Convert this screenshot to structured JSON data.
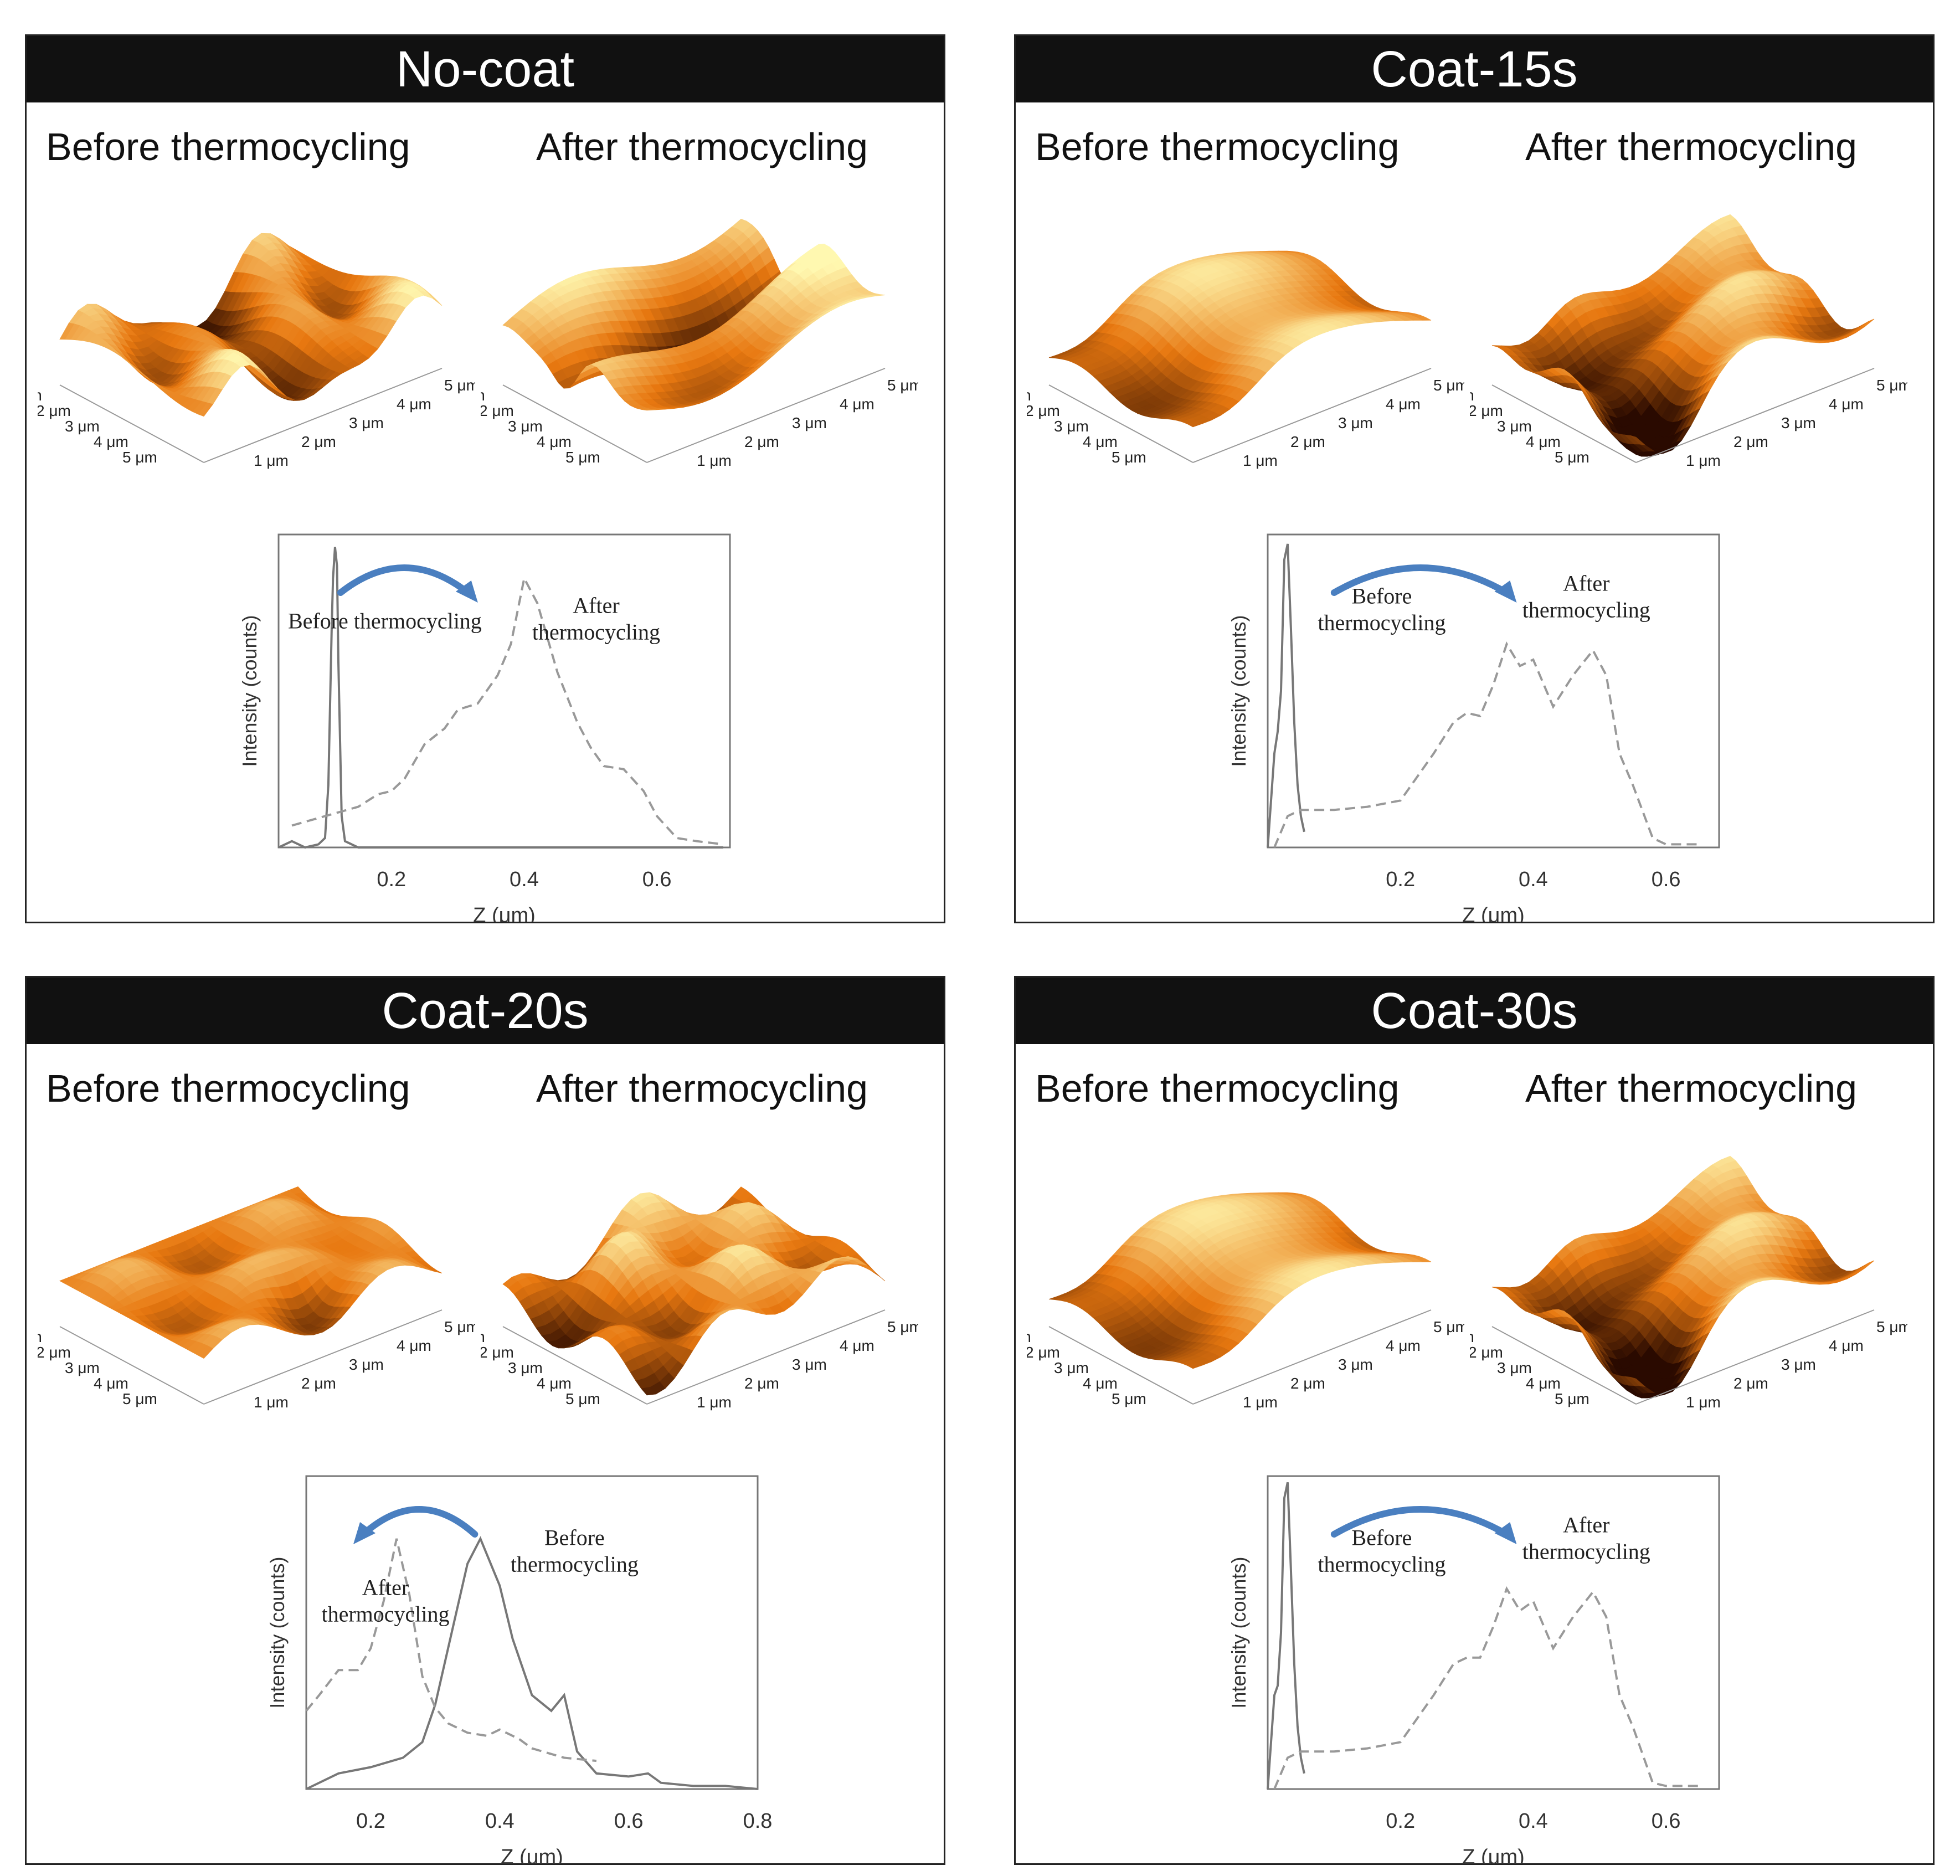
{
  "colors": {
    "header_bg": "#111111",
    "header_text": "#ffffff",
    "arrow": "#4a7fc0",
    "before_line": "#777777",
    "after_line": "#999999",
    "surface_dark": "#2a0a00",
    "surface_mid": "#e87810",
    "surface_light": "#fff8b0"
  },
  "panels": [
    {
      "title": "No-coat",
      "before_label": "Before thermocycling",
      "after_label": "After thermocycling",
      "surface_axis_labels": [
        "1 μm",
        "2 μm",
        "3 μm",
        "4 μm",
        "5 μm"
      ],
      "icon": "afm-surface-3d"
    },
    {
      "title": "Coat-15s",
      "before_label": "Before thermocycling",
      "after_label": "After thermocycling",
      "surface_axis_labels": [
        "1 μm",
        "2 μm",
        "3 μm",
        "4 μm",
        "5 μm"
      ],
      "icon": "afm-surface-3d"
    },
    {
      "title": "Coat-20s",
      "before_label": "Before thermocycling",
      "after_label": "After thermocycling",
      "surface_axis_labels": [
        "1 μm",
        "2 μm",
        "3 μm",
        "4 μm",
        "5 μm"
      ],
      "icon": "afm-surface-3d"
    },
    {
      "title": "Coat-30s",
      "before_label": "Before thermocycling",
      "after_label": "After thermocycling",
      "surface_axis_labels": [
        "1 μm",
        "2 μm",
        "3 μm",
        "4 μm",
        "5 μm"
      ],
      "icon": "afm-surface-3d"
    }
  ],
  "chart_data": [
    {
      "type": "line",
      "title": "No-coat",
      "xlabel": "Z (μm)",
      "ylabel": "Intensity (counts)",
      "xlim": [
        0.03,
        0.71
      ],
      "ylim": [
        0,
        1.0
      ],
      "xticks": [
        0.2,
        0.4,
        0.6
      ],
      "tick_labels": [
        "0.2",
        "0.4",
        "0.6"
      ],
      "annotation_before": [
        "Before thermocycling"
      ],
      "annotation_after": [
        "After",
        "thermocycling"
      ],
      "arrow_direction": "before-to-after",
      "series": [
        {
          "name": "Before thermocycling",
          "style": "solid",
          "x": [
            0.03,
            0.05,
            0.07,
            0.09,
            0.1,
            0.105,
            0.11,
            0.112,
            0.115,
            0.118,
            0.12,
            0.125,
            0.13,
            0.15,
            0.2,
            0.3,
            0.4,
            0.5,
            0.6,
            0.7
          ],
          "y": [
            0.0,
            0.02,
            0.0,
            0.01,
            0.03,
            0.2,
            0.7,
            0.86,
            0.96,
            0.9,
            0.6,
            0.1,
            0.02,
            0.0,
            0.0,
            0.0,
            0.0,
            0.0,
            0.0,
            0.0
          ]
        },
        {
          "name": "After thermocycling",
          "style": "dashed",
          "x": [
            0.05,
            0.1,
            0.15,
            0.18,
            0.2,
            0.22,
            0.25,
            0.28,
            0.3,
            0.33,
            0.36,
            0.38,
            0.4,
            0.42,
            0.45,
            0.48,
            0.5,
            0.52,
            0.55,
            0.58,
            0.6,
            0.63,
            0.66,
            0.7
          ],
          "y": [
            0.07,
            0.1,
            0.13,
            0.17,
            0.18,
            0.22,
            0.33,
            0.38,
            0.44,
            0.46,
            0.55,
            0.65,
            0.86,
            0.78,
            0.56,
            0.4,
            0.32,
            0.26,
            0.25,
            0.18,
            0.1,
            0.03,
            0.02,
            0.01
          ]
        }
      ]
    },
    {
      "type": "line",
      "title": "Coat-15s",
      "xlabel": "Z (μm)",
      "ylabel": "Intensity (counts)",
      "xlim": [
        0.0,
        0.68
      ],
      "ylim": [
        0,
        1.0
      ],
      "xticks": [
        0.2,
        0.4,
        0.6
      ],
      "tick_labels": [
        "0.2",
        "0.4",
        "0.6"
      ],
      "annotation_before": [
        "Before",
        "thermocycling"
      ],
      "annotation_after": [
        "After",
        "thermocycling"
      ],
      "arrow_direction": "before-to-after",
      "series": [
        {
          "name": "Before thermocycling",
          "style": "solid",
          "x": [
            0.0,
            0.01,
            0.015,
            0.02,
            0.025,
            0.03,
            0.035,
            0.04,
            0.045,
            0.05,
            0.055
          ],
          "y": [
            0.0,
            0.3,
            0.37,
            0.5,
            0.92,
            0.97,
            0.7,
            0.4,
            0.2,
            0.1,
            0.05
          ]
        },
        {
          "name": "After thermocycling",
          "style": "dashed",
          "x": [
            0.01,
            0.03,
            0.05,
            0.1,
            0.15,
            0.2,
            0.25,
            0.28,
            0.3,
            0.32,
            0.34,
            0.36,
            0.38,
            0.4,
            0.43,
            0.46,
            0.49,
            0.51,
            0.53,
            0.55,
            0.58,
            0.6,
            0.65
          ],
          "y": [
            0.0,
            0.1,
            0.12,
            0.12,
            0.13,
            0.15,
            0.3,
            0.4,
            0.43,
            0.42,
            0.52,
            0.65,
            0.58,
            0.6,
            0.45,
            0.55,
            0.63,
            0.55,
            0.3,
            0.2,
            0.03,
            0.01,
            0.01
          ]
        }
      ]
    },
    {
      "type": "line",
      "title": "Coat-20s",
      "xlabel": "Z (μm)",
      "ylabel": "Intensity (counts)",
      "xlim": [
        0.1,
        0.8
      ],
      "ylim": [
        0,
        1.0
      ],
      "xticks": [
        0.2,
        0.4,
        0.6,
        0.8
      ],
      "tick_labels": [
        "0.2",
        "0.4",
        "0.6",
        "0.8"
      ],
      "annotation_before": [
        "Before",
        "thermocycling"
      ],
      "annotation_after": [
        "After",
        "thermocycling"
      ],
      "arrow_direction": "before-to-after",
      "series": [
        {
          "name": "Before thermocycling",
          "style": "solid",
          "x": [
            0.1,
            0.15,
            0.2,
            0.25,
            0.28,
            0.3,
            0.32,
            0.35,
            0.37,
            0.4,
            0.42,
            0.45,
            0.48,
            0.5,
            0.52,
            0.55,
            0.6,
            0.63,
            0.65,
            0.7,
            0.75,
            0.8
          ],
          "y": [
            0.0,
            0.05,
            0.07,
            0.1,
            0.15,
            0.27,
            0.45,
            0.72,
            0.8,
            0.65,
            0.48,
            0.3,
            0.25,
            0.3,
            0.12,
            0.05,
            0.04,
            0.05,
            0.02,
            0.01,
            0.01,
            0.0
          ]
        },
        {
          "name": "After thermocycling",
          "style": "dashed",
          "x": [
            0.1,
            0.12,
            0.15,
            0.18,
            0.2,
            0.22,
            0.24,
            0.26,
            0.28,
            0.3,
            0.32,
            0.35,
            0.38,
            0.4,
            0.43,
            0.45,
            0.5,
            0.55
          ],
          "y": [
            0.25,
            0.3,
            0.38,
            0.38,
            0.45,
            0.6,
            0.8,
            0.62,
            0.36,
            0.26,
            0.21,
            0.18,
            0.17,
            0.19,
            0.16,
            0.13,
            0.1,
            0.09
          ]
        }
      ]
    },
    {
      "type": "line",
      "title": "Coat-30s",
      "xlabel": "Z (μm)",
      "ylabel": "Intensity (counts)",
      "xlim": [
        0.0,
        0.68
      ],
      "ylim": [
        0,
        1.0
      ],
      "xticks": [
        0.2,
        0.4,
        0.6
      ],
      "tick_labels": [
        "0.2",
        "0.4",
        "0.6"
      ],
      "annotation_before": [
        "Before",
        "thermocycling"
      ],
      "annotation_after": [
        "After",
        "thermocycling"
      ],
      "arrow_direction": "before-to-after",
      "series": [
        {
          "name": "Before thermocycling",
          "style": "solid",
          "x": [
            0.0,
            0.01,
            0.015,
            0.02,
            0.025,
            0.03,
            0.035,
            0.04,
            0.045,
            0.05,
            0.055
          ],
          "y": [
            0.0,
            0.3,
            0.33,
            0.5,
            0.93,
            0.98,
            0.7,
            0.4,
            0.2,
            0.1,
            0.05
          ]
        },
        {
          "name": "After thermocycling",
          "style": "dashed",
          "x": [
            0.01,
            0.03,
            0.05,
            0.1,
            0.15,
            0.2,
            0.25,
            0.28,
            0.3,
            0.32,
            0.34,
            0.36,
            0.38,
            0.4,
            0.43,
            0.46,
            0.49,
            0.51,
            0.53,
            0.55,
            0.58,
            0.6,
            0.65
          ],
          "y": [
            0.0,
            0.1,
            0.12,
            0.12,
            0.13,
            0.15,
            0.3,
            0.4,
            0.42,
            0.42,
            0.52,
            0.64,
            0.57,
            0.6,
            0.45,
            0.55,
            0.63,
            0.55,
            0.3,
            0.2,
            0.02,
            0.01,
            0.01
          ]
        }
      ]
    }
  ]
}
